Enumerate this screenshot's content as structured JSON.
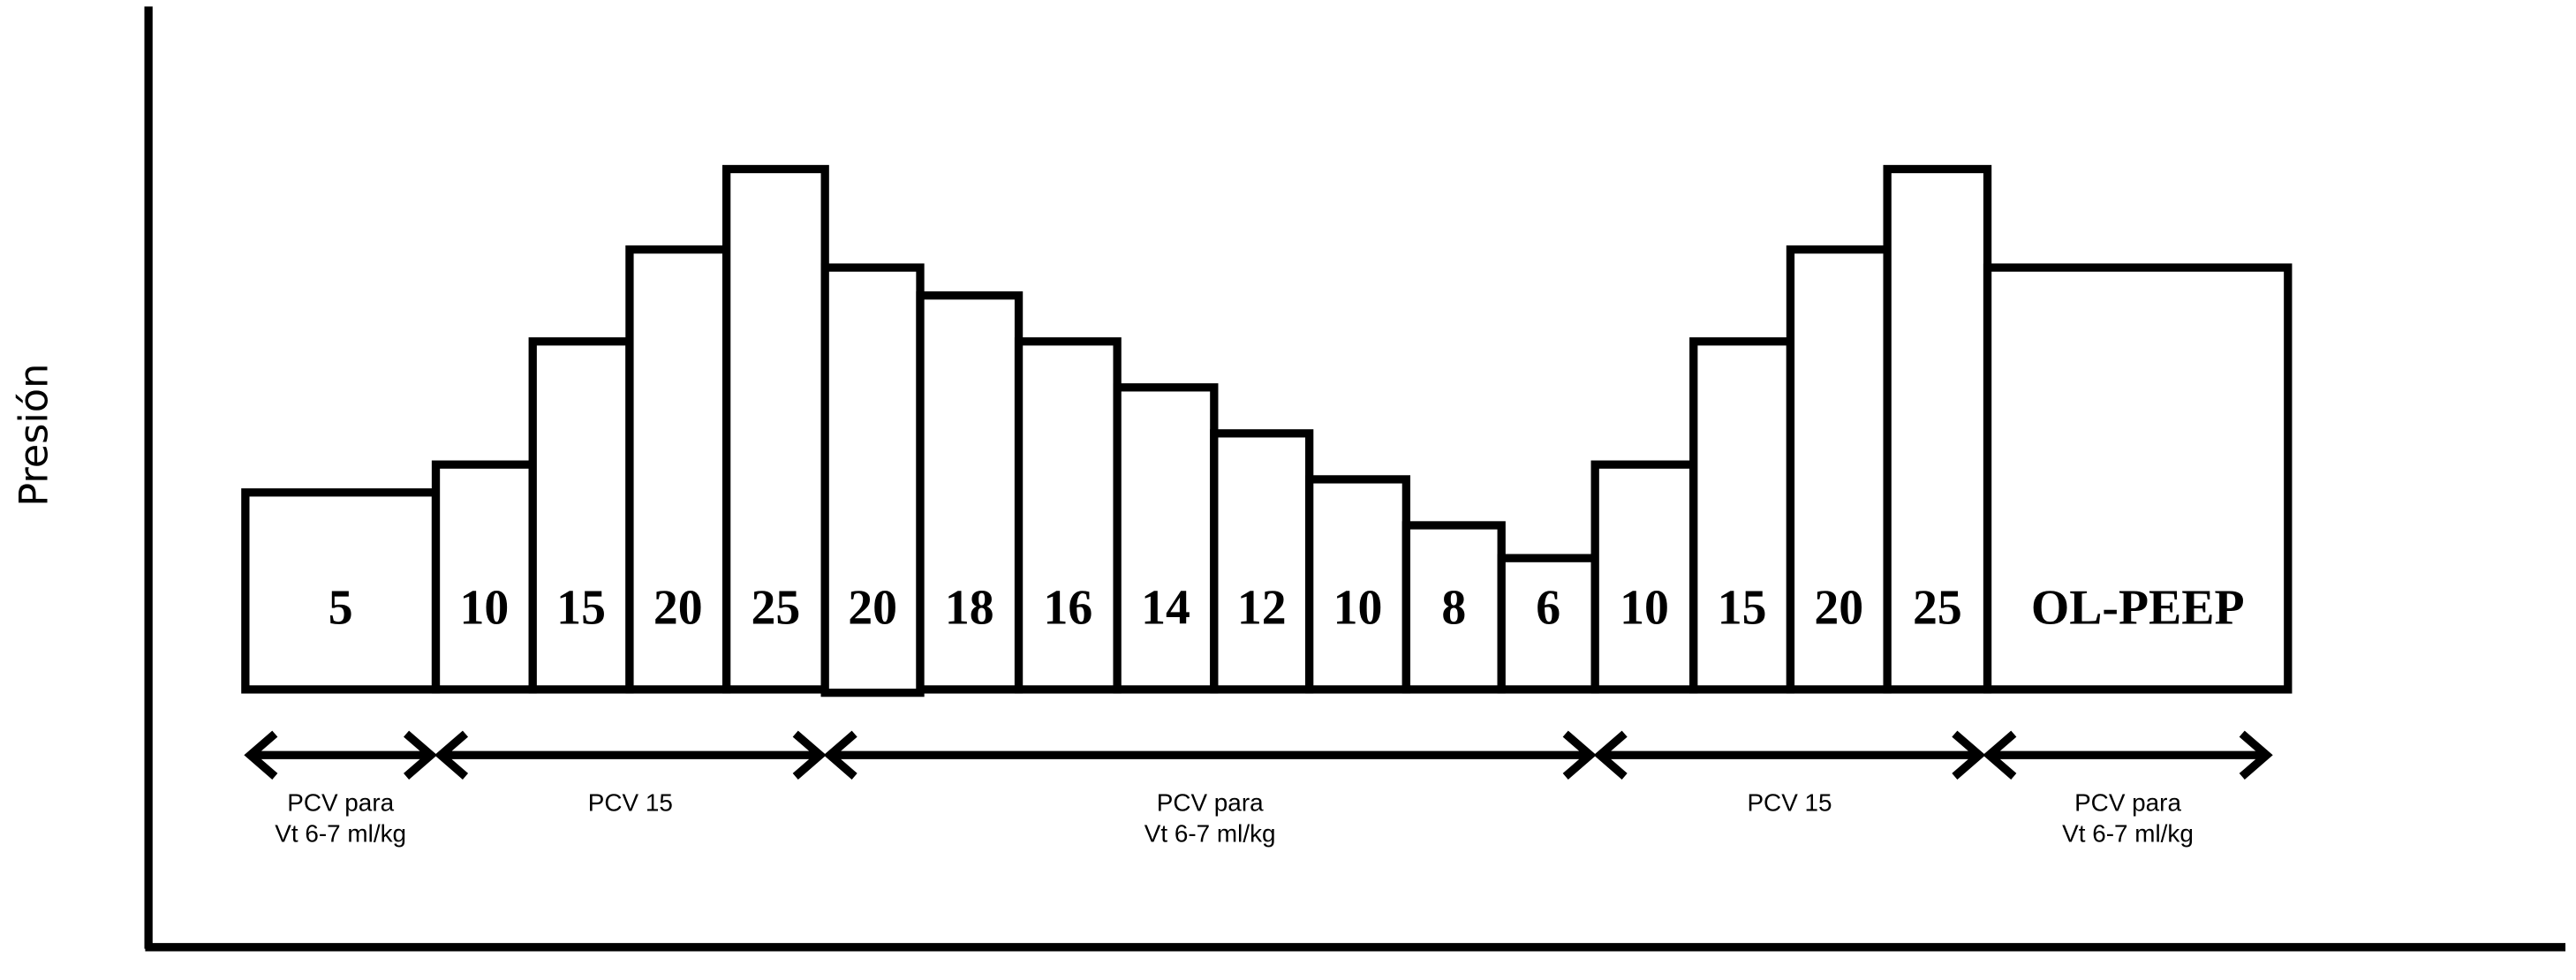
{
  "axis_label": "Presión",
  "steps": [
    {
      "label": 5
    },
    {
      "label": 10
    },
    {
      "label": 15
    },
    {
      "label": 20
    },
    {
      "label": 25
    },
    {
      "label": 20
    },
    {
      "label": 18
    },
    {
      "label": 16
    },
    {
      "label": 14
    },
    {
      "label": 12
    },
    {
      "label": 10
    },
    {
      "label": 8
    },
    {
      "label": 6
    },
    {
      "label": 10
    },
    {
      "label": 15
    },
    {
      "label": 20
    },
    {
      "label": 25
    },
    {
      "label": "OL-PEEP"
    }
  ],
  "phases": [
    {
      "lines": [
        "PCV para",
        "Vt 6-7 ml/kg"
      ]
    },
    {
      "lines": [
        "PCV 15"
      ]
    },
    {
      "lines": [
        "PCV para",
        "Vt 6-7 ml/kg"
      ]
    },
    {
      "lines": [
        "PCV 15"
      ]
    },
    {
      "lines": [
        "PCV para",
        "Vt 6-7 ml/kg"
      ]
    }
  ]
}
